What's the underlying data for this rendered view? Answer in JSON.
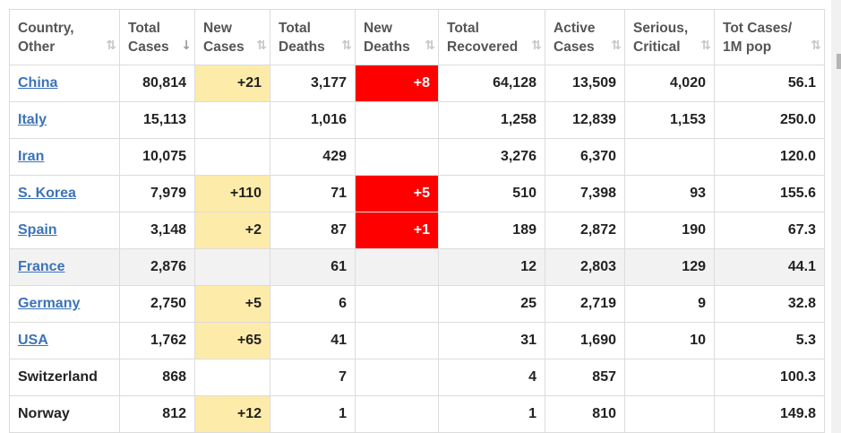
{
  "headers": [
    {
      "label": "Country,\nOther",
      "sort": "⇅"
    },
    {
      "label": "Total\nCases",
      "sort": "↓"
    },
    {
      "label": "New\nCases",
      "sort": "⇅"
    },
    {
      "label": "Total\nDeaths",
      "sort": "⇅"
    },
    {
      "label": "New\nDeaths",
      "sort": "⇅"
    },
    {
      "label": "Total\nRecovered",
      "sort": "⇅"
    },
    {
      "label": "Active\nCases",
      "sort": "⇅"
    },
    {
      "label": "Serious,\nCritical",
      "sort": "⇅"
    },
    {
      "label": "Tot Cases/\n1M pop",
      "sort": "⇅"
    }
  ],
  "rows": [
    {
      "country": "China",
      "link": true,
      "total_cases": "80,814",
      "new_cases": "+21",
      "total_deaths": "3,177",
      "new_deaths": "+8",
      "total_recovered": "64,128",
      "active_cases": "13,509",
      "serious_critical": "4,020",
      "per_million": "56.1"
    },
    {
      "country": "Italy",
      "link": true,
      "total_cases": "15,113",
      "new_cases": "",
      "total_deaths": "1,016",
      "new_deaths": "",
      "total_recovered": "1,258",
      "active_cases": "12,839",
      "serious_critical": "1,153",
      "per_million": "250.0"
    },
    {
      "country": "Iran",
      "link": true,
      "total_cases": "10,075",
      "new_cases": "",
      "total_deaths": "429",
      "new_deaths": "",
      "total_recovered": "3,276",
      "active_cases": "6,370",
      "serious_critical": "",
      "per_million": "120.0"
    },
    {
      "country": "S. Korea",
      "link": true,
      "total_cases": "7,979",
      "new_cases": "+110",
      "total_deaths": "71",
      "new_deaths": "+5",
      "total_recovered": "510",
      "active_cases": "7,398",
      "serious_critical": "93",
      "per_million": "155.6"
    },
    {
      "country": "Spain",
      "link": true,
      "total_cases": "3,148",
      "new_cases": "+2",
      "total_deaths": "87",
      "new_deaths": "+1",
      "total_recovered": "189",
      "active_cases": "2,872",
      "serious_critical": "190",
      "per_million": "67.3"
    },
    {
      "country": "France",
      "link": true,
      "total_cases": "2,876",
      "new_cases": "",
      "total_deaths": "61",
      "new_deaths": "",
      "total_recovered": "12",
      "active_cases": "2,803",
      "serious_critical": "129",
      "per_million": "44.1"
    },
    {
      "country": "Germany",
      "link": true,
      "total_cases": "2,750",
      "new_cases": "+5",
      "total_deaths": "6",
      "new_deaths": "",
      "total_recovered": "25",
      "active_cases": "2,719",
      "serious_critical": "9",
      "per_million": "32.8"
    },
    {
      "country": "USA",
      "link": true,
      "total_cases": "1,762",
      "new_cases": "+65",
      "total_deaths": "41",
      "new_deaths": "",
      "total_recovered": "31",
      "active_cases": "1,690",
      "serious_critical": "10",
      "per_million": "5.3"
    },
    {
      "country": "Switzerland",
      "link": false,
      "total_cases": "868",
      "new_cases": "",
      "total_deaths": "7",
      "new_deaths": "",
      "total_recovered": "4",
      "active_cases": "857",
      "serious_critical": "",
      "per_million": "100.3"
    },
    {
      "country": "Norway",
      "link": false,
      "total_cases": "812",
      "new_cases": "+12",
      "total_deaths": "1",
      "new_deaths": "",
      "total_recovered": "1",
      "active_cases": "810",
      "serious_critical": "",
      "per_million": "149.8"
    }
  ],
  "colors": {
    "new_cases_bg": "#fdeba9",
    "new_deaths_bg": "#ff0000",
    "link": "#3b73b9",
    "highlight_row_bg": "#f2f2f2"
  },
  "highlighted_row": "France"
}
